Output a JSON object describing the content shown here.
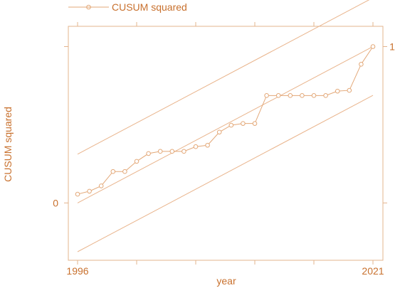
{
  "chart_data": {
    "type": "line",
    "title": "",
    "xlabel": "year",
    "ylabel": "CUSUM squared",
    "x_ticks": [
      1996,
      2021
    ],
    "y_ticks": [
      0,
      1
    ],
    "xlim": [
      1996,
      2021
    ],
    "ylim": [
      -0.312,
      1.075
    ],
    "grid": false,
    "legend_position": "top-left",
    "legend": [
      "CUSUM squared"
    ],
    "colors": {
      "series": "#e3a878",
      "bounds": "#e9b48c",
      "axis": "#e3b48d",
      "text": "#c8702d"
    },
    "series": [
      {
        "name": "CUSUM squared",
        "x": [
          1996,
          1997,
          1998,
          1999,
          2000,
          2001,
          2002,
          2003,
          2004,
          2005,
          2006,
          2007,
          2008,
          2009,
          2010,
          2011,
          2012,
          2013,
          2014,
          2015,
          2016,
          2017,
          2018,
          2019,
          2020,
          2021
        ],
        "y": [
          0.056,
          0.075,
          0.109,
          0.201,
          0.201,
          0.266,
          0.316,
          0.33,
          0.33,
          0.33,
          0.36,
          0.369,
          0.453,
          0.497,
          0.508,
          0.508,
          0.687,
          0.687,
          0.687,
          0.687,
          0.687,
          0.687,
          0.715,
          0.72,
          0.887,
          1.0
        ]
      }
    ],
    "reference_lines": [
      {
        "role": "upper-bound",
        "x": [
          1996,
          2021
        ],
        "y": [
          0.312,
          1.312
        ]
      },
      {
        "role": "expected",
        "x": [
          1996,
          2021
        ],
        "y": [
          0.0,
          1.0
        ]
      },
      {
        "role": "lower-bound",
        "x": [
          1996,
          2021
        ],
        "y": [
          -0.312,
          0.688
        ]
      }
    ]
  }
}
